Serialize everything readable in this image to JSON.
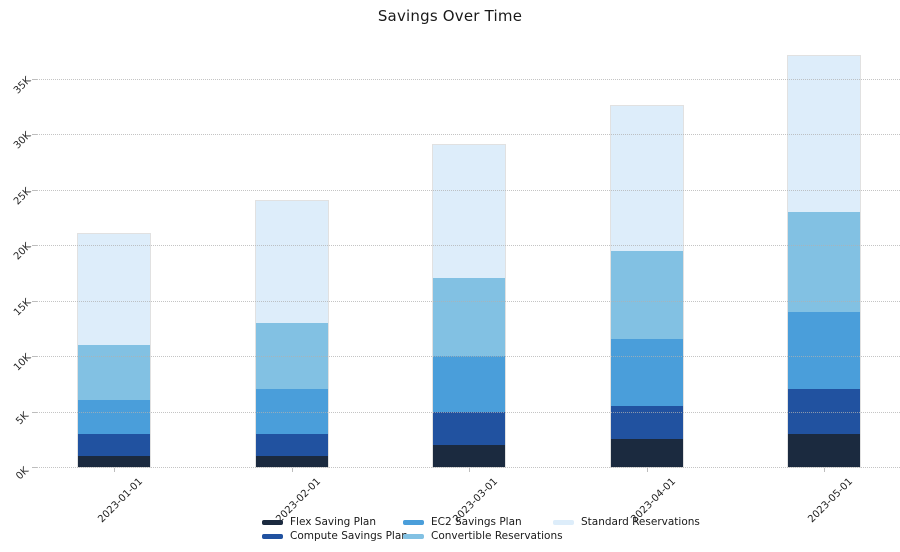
{
  "chart_data": {
    "type": "bar",
    "stacked": true,
    "title": "Savings Over Time",
    "categories": [
      "2023-01-01",
      "2023-02-01",
      "2023-03-01",
      "2023-04-01",
      "2023-05-01"
    ],
    "series": [
      {
        "name": "Flex Saving Plan",
        "color": "#1b2a3f",
        "values": [
          1000,
          1000,
          2000,
          2500,
          3000
        ]
      },
      {
        "name": "Compute Savings Plan",
        "color": "#2152a0",
        "values": [
          2000,
          2000,
          3000,
          3000,
          4000
        ]
      },
      {
        "name": "EC2 Savings Plan",
        "color": "#4a9eda",
        "values": [
          3000,
          4000,
          5000,
          6000,
          7000
        ]
      },
      {
        "name": "Convertible Reservations",
        "color": "#82c1e3",
        "values": [
          5000,
          6000,
          7000,
          8000,
          9000
        ]
      },
      {
        "name": "Standard Reservations",
        "color": "#ddedfa",
        "values": [
          10000,
          11000,
          12000,
          13000,
          14000
        ]
      }
    ],
    "totals": [
      21000,
      24000,
      29000,
      32500,
      37000
    ],
    "yticks": [
      {
        "label": "0K",
        "value": 0
      },
      {
        "label": "5K",
        "value": 5000
      },
      {
        "label": "10K",
        "value": 10000
      },
      {
        "label": "15K",
        "value": 15000
      },
      {
        "label": "20K",
        "value": 20000
      },
      {
        "label": "25K",
        "value": 25000
      },
      {
        "label": "30K",
        "value": 30000
      },
      {
        "label": "35K",
        "value": 35000
      }
    ],
    "ylim": [
      0,
      37500
    ],
    "xlabel": "",
    "ylabel": "",
    "grid": "horizontal-dotted",
    "legend": {
      "position": "bottom",
      "columns": [
        [
          0,
          1
        ],
        [
          2,
          3
        ],
        [
          4
        ]
      ]
    }
  }
}
